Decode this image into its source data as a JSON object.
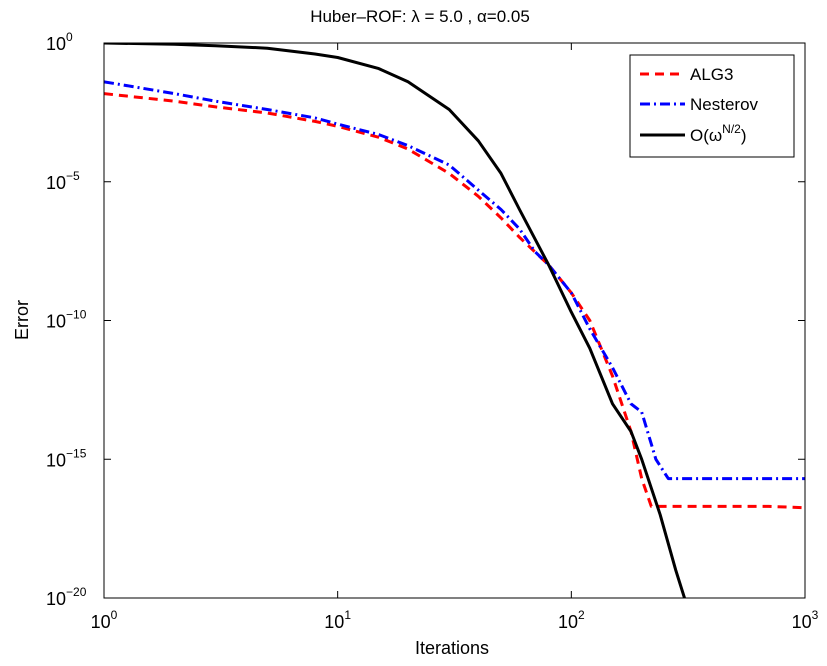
{
  "chart_data": {
    "type": "line",
    "title": {
      "prefix": "Huber–ROF: ",
      "lambda_symbol": "λ",
      "middle": " = 5.0 , ",
      "alpha_symbol": "α",
      "suffix": "=0.05"
    },
    "xlabel": "Iterations",
    "ylabel": "Error",
    "x_scale": "log",
    "y_scale": "log",
    "xlim": [
      1,
      1000
    ],
    "ylim": [
      1e-20,
      1
    ],
    "x_ticks": [
      {
        "value": 1,
        "base": "10",
        "exp": "0"
      },
      {
        "value": 10,
        "base": "10",
        "exp": "1"
      },
      {
        "value": 100,
        "base": "10",
        "exp": "2"
      },
      {
        "value": 1000,
        "base": "10",
        "exp": "3"
      }
    ],
    "y_ticks": [
      {
        "value": 1,
        "base": "10",
        "exp": "0"
      },
      {
        "value": 1e-05,
        "base": "10",
        "exp": "−5"
      },
      {
        "value": 1e-10,
        "base": "10",
        "exp": "−10"
      },
      {
        "value": 1e-15,
        "base": "10",
        "exp": "−15"
      },
      {
        "value": 1e-20,
        "base": "10",
        "exp": "−20"
      }
    ],
    "grid": false,
    "legend_position": "top-right",
    "series": [
      {
        "name": "ALG3",
        "color": "#ff0000",
        "style": "dashed",
        "x": [
          1,
          2,
          3,
          5,
          8,
          10,
          15,
          20,
          30,
          40,
          50,
          60,
          80,
          100,
          120,
          150,
          180,
          200,
          220,
          300,
          500,
          700,
          1000
        ],
        "y": [
          0.015,
          0.008,
          0.005,
          0.003,
          0.0015,
          0.001,
          0.0004,
          0.00015,
          2e-05,
          3e-06,
          5e-07,
          1e-07,
          1e-08,
          1e-09,
          1e-10,
          1e-12,
          1e-14,
          2e-16,
          2e-17,
          2e-17,
          2e-17,
          2e-17,
          1.8e-17
        ]
      },
      {
        "name": "Nesterov",
        "color": "#0000ff",
        "style": "dashdot",
        "x": [
          1,
          2,
          3,
          5,
          8,
          10,
          15,
          20,
          30,
          40,
          50,
          60,
          70,
          80,
          100,
          120,
          150,
          180,
          200,
          230,
          260,
          300,
          500,
          700,
          1000
        ],
        "y": [
          0.04,
          0.015,
          0.008,
          0.004,
          0.002,
          0.0012,
          0.0005,
          0.0002,
          4e-05,
          5e-06,
          1e-06,
          2e-07,
          3e-08,
          1e-08,
          1e-09,
          5e-11,
          2e-12,
          1e-13,
          5e-14,
          1e-15,
          2e-16,
          2e-16,
          2e-16,
          2e-16,
          2e-16
        ]
      },
      {
        "name": "O(ω^(N/2))",
        "color": "#000000",
        "style": "solid",
        "x": [
          1,
          2,
          3,
          5,
          8,
          10,
          15,
          20,
          30,
          40,
          50,
          60,
          80,
          100,
          120,
          150,
          180,
          200,
          240,
          280,
          305
        ],
        "y": [
          1,
          0.9,
          0.8,
          0.65,
          0.4,
          0.3,
          0.12,
          0.04,
          0.004,
          0.0003,
          2e-05,
          1e-06,
          1e-08,
          2e-10,
          1e-11,
          1e-13,
          1e-14,
          1e-15,
          1e-17,
          1e-19,
          1e-20
        ]
      }
    ],
    "legend_labels": {
      "alg3": "ALG3",
      "nesterov": "Nesterov",
      "rate_prefix": "O(ω",
      "rate_sup": "N/2",
      "rate_suffix": ")"
    }
  }
}
